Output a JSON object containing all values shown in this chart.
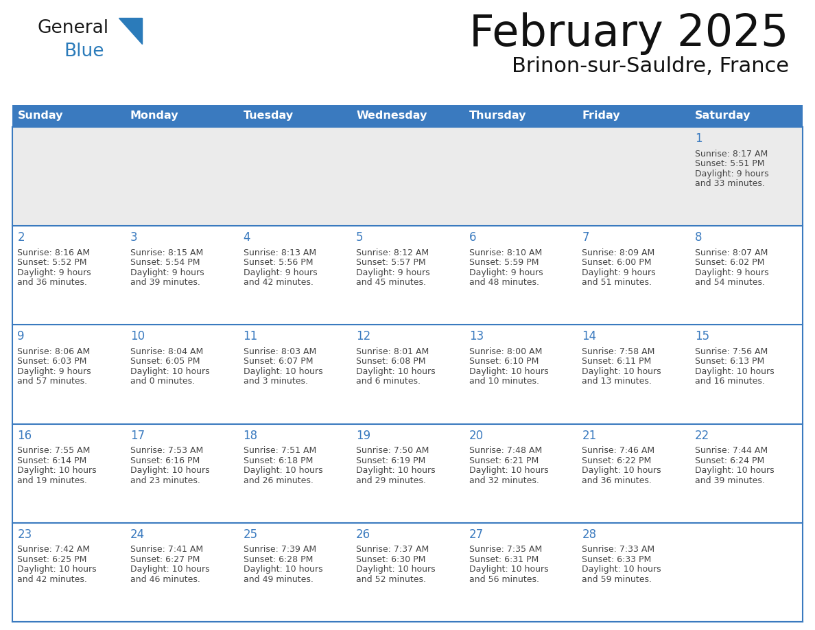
{
  "title": "February 2025",
  "subtitle": "Brinon-sur-Sauldre, France",
  "header_color": "#3a7abf",
  "header_text_color": "#ffffff",
  "day_names": [
    "Sunday",
    "Monday",
    "Tuesday",
    "Wednesday",
    "Thursday",
    "Friday",
    "Saturday"
  ],
  "bg_color": "#ffffff",
  "row0_bg": "#ebebeb",
  "row_odd_bg": "#ffffff",
  "row_even_bg": "#ffffff",
  "grid_line_color": "#3a7abf",
  "number_color": "#3a7abf",
  "text_color": "#444444",
  "logo_general_color": "#1a1a1a",
  "logo_blue_color": "#2b7bba",
  "logo_triangle_color": "#2b7bba",
  "title_color": "#111111",
  "subtitle_color": "#111111",
  "days": [
    {
      "day": 1,
      "col": 6,
      "row": 0,
      "sunrise": "8:17 AM",
      "sunset": "5:51 PM",
      "daylight": "9 hours and 33 minutes."
    },
    {
      "day": 2,
      "col": 0,
      "row": 1,
      "sunrise": "8:16 AM",
      "sunset": "5:52 PM",
      "daylight": "9 hours and 36 minutes."
    },
    {
      "day": 3,
      "col": 1,
      "row": 1,
      "sunrise": "8:15 AM",
      "sunset": "5:54 PM",
      "daylight": "9 hours and 39 minutes."
    },
    {
      "day": 4,
      "col": 2,
      "row": 1,
      "sunrise": "8:13 AM",
      "sunset": "5:56 PM",
      "daylight": "9 hours and 42 minutes."
    },
    {
      "day": 5,
      "col": 3,
      "row": 1,
      "sunrise": "8:12 AM",
      "sunset": "5:57 PM",
      "daylight": "9 hours and 45 minutes."
    },
    {
      "day": 6,
      "col": 4,
      "row": 1,
      "sunrise": "8:10 AM",
      "sunset": "5:59 PM",
      "daylight": "9 hours and 48 minutes."
    },
    {
      "day": 7,
      "col": 5,
      "row": 1,
      "sunrise": "8:09 AM",
      "sunset": "6:00 PM",
      "daylight": "9 hours and 51 minutes."
    },
    {
      "day": 8,
      "col": 6,
      "row": 1,
      "sunrise": "8:07 AM",
      "sunset": "6:02 PM",
      "daylight": "9 hours and 54 minutes."
    },
    {
      "day": 9,
      "col": 0,
      "row": 2,
      "sunrise": "8:06 AM",
      "sunset": "6:03 PM",
      "daylight": "9 hours and 57 minutes."
    },
    {
      "day": 10,
      "col": 1,
      "row": 2,
      "sunrise": "8:04 AM",
      "sunset": "6:05 PM",
      "daylight": "10 hours and 0 minutes."
    },
    {
      "day": 11,
      "col": 2,
      "row": 2,
      "sunrise": "8:03 AM",
      "sunset": "6:07 PM",
      "daylight": "10 hours and 3 minutes."
    },
    {
      "day": 12,
      "col": 3,
      "row": 2,
      "sunrise": "8:01 AM",
      "sunset": "6:08 PM",
      "daylight": "10 hours and 6 minutes."
    },
    {
      "day": 13,
      "col": 4,
      "row": 2,
      "sunrise": "8:00 AM",
      "sunset": "6:10 PM",
      "daylight": "10 hours and 10 minutes."
    },
    {
      "day": 14,
      "col": 5,
      "row": 2,
      "sunrise": "7:58 AM",
      "sunset": "6:11 PM",
      "daylight": "10 hours and 13 minutes."
    },
    {
      "day": 15,
      "col": 6,
      "row": 2,
      "sunrise": "7:56 AM",
      "sunset": "6:13 PM",
      "daylight": "10 hours and 16 minutes."
    },
    {
      "day": 16,
      "col": 0,
      "row": 3,
      "sunrise": "7:55 AM",
      "sunset": "6:14 PM",
      "daylight": "10 hours and 19 minutes."
    },
    {
      "day": 17,
      "col": 1,
      "row": 3,
      "sunrise": "7:53 AM",
      "sunset": "6:16 PM",
      "daylight": "10 hours and 23 minutes."
    },
    {
      "day": 18,
      "col": 2,
      "row": 3,
      "sunrise": "7:51 AM",
      "sunset": "6:18 PM",
      "daylight": "10 hours and 26 minutes."
    },
    {
      "day": 19,
      "col": 3,
      "row": 3,
      "sunrise": "7:50 AM",
      "sunset": "6:19 PM",
      "daylight": "10 hours and 29 minutes."
    },
    {
      "day": 20,
      "col": 4,
      "row": 3,
      "sunrise": "7:48 AM",
      "sunset": "6:21 PM",
      "daylight": "10 hours and 32 minutes."
    },
    {
      "day": 21,
      "col": 5,
      "row": 3,
      "sunrise": "7:46 AM",
      "sunset": "6:22 PM",
      "daylight": "10 hours and 36 minutes."
    },
    {
      "day": 22,
      "col": 6,
      "row": 3,
      "sunrise": "7:44 AM",
      "sunset": "6:24 PM",
      "daylight": "10 hours and 39 minutes."
    },
    {
      "day": 23,
      "col": 0,
      "row": 4,
      "sunrise": "7:42 AM",
      "sunset": "6:25 PM",
      "daylight": "10 hours and 42 minutes."
    },
    {
      "day": 24,
      "col": 1,
      "row": 4,
      "sunrise": "7:41 AM",
      "sunset": "6:27 PM",
      "daylight": "10 hours and 46 minutes."
    },
    {
      "day": 25,
      "col": 2,
      "row": 4,
      "sunrise": "7:39 AM",
      "sunset": "6:28 PM",
      "daylight": "10 hours and 49 minutes."
    },
    {
      "day": 26,
      "col": 3,
      "row": 4,
      "sunrise": "7:37 AM",
      "sunset": "6:30 PM",
      "daylight": "10 hours and 52 minutes."
    },
    {
      "day": 27,
      "col": 4,
      "row": 4,
      "sunrise": "7:35 AM",
      "sunset": "6:31 PM",
      "daylight": "10 hours and 56 minutes."
    },
    {
      "day": 28,
      "col": 5,
      "row": 4,
      "sunrise": "7:33 AM",
      "sunset": "6:33 PM",
      "daylight": "10 hours and 59 minutes."
    }
  ]
}
